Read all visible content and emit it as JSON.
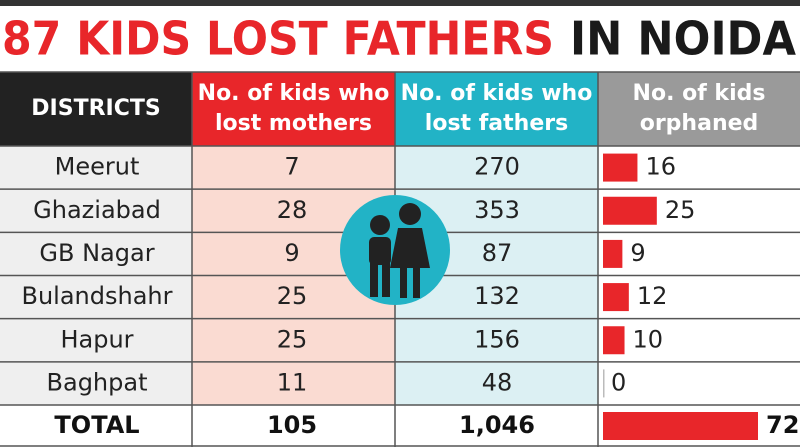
{
  "title": {
    "highlight": "87 KIDS LOST FATHERS",
    "rest": "IN NOIDA"
  },
  "table": {
    "headers": [
      [
        "DISTRICTS"
      ],
      [
        "No. of kids who",
        "lost mothers"
      ],
      [
        "No. of kids who",
        "lost fathers"
      ],
      [
        "No. of kids",
        "orphaned"
      ]
    ],
    "rows": [
      [
        "Meerut",
        7,
        270,
        16
      ],
      [
        "Ghaziabad",
        28,
        353,
        25
      ],
      [
        "GB Nagar",
        9,
        87,
        9
      ],
      [
        "Bulandshahr",
        25,
        132,
        12
      ],
      [
        "Hapur",
        25,
        156,
        10
      ],
      [
        "Baghpat",
        11,
        48,
        0
      ]
    ],
    "total": [
      "TOTAL",
      105,
      "1,046",
      72
    ]
  }
}
